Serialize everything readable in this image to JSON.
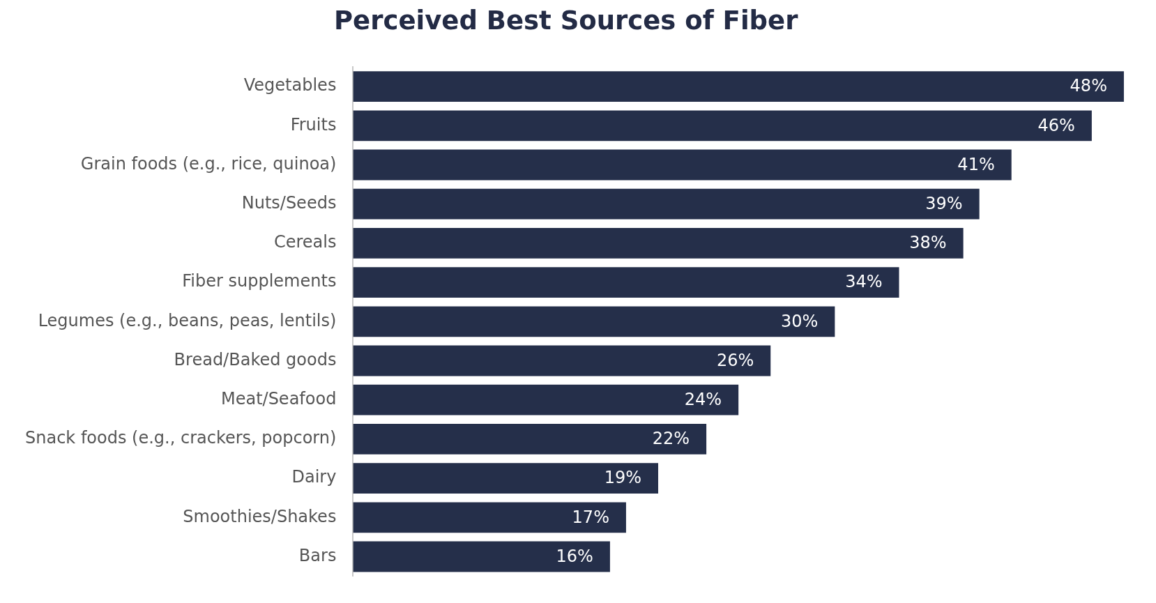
{
  "chart_data": {
    "type": "bar",
    "orientation": "horizontal",
    "title": "Perceived Best Sources of Fiber",
    "categories": [
      "Vegetables",
      "Fruits",
      "Grain foods (e.g., rice, quinoa)",
      "Nuts/Seeds",
      "Cereals",
      "Fiber supplements",
      "Legumes (e.g., beans, peas, lentils)",
      "Bread/Baked goods",
      "Meat/Seafood",
      "Snack foods (e.g., crackers, popcorn)",
      "Dairy",
      "Smoothies/Shakes",
      "Bars"
    ],
    "values": [
      48,
      46,
      41,
      39,
      38,
      34,
      30,
      26,
      24,
      22,
      19,
      17,
      16
    ],
    "value_labels": [
      "48%",
      "46%",
      "41%",
      "39%",
      "38%",
      "34%",
      "30%",
      "26%",
      "24%",
      "22%",
      "19%",
      "17%",
      "16%"
    ],
    "color": "#252f4a",
    "legend": false,
    "tick_labels": "y"
  }
}
